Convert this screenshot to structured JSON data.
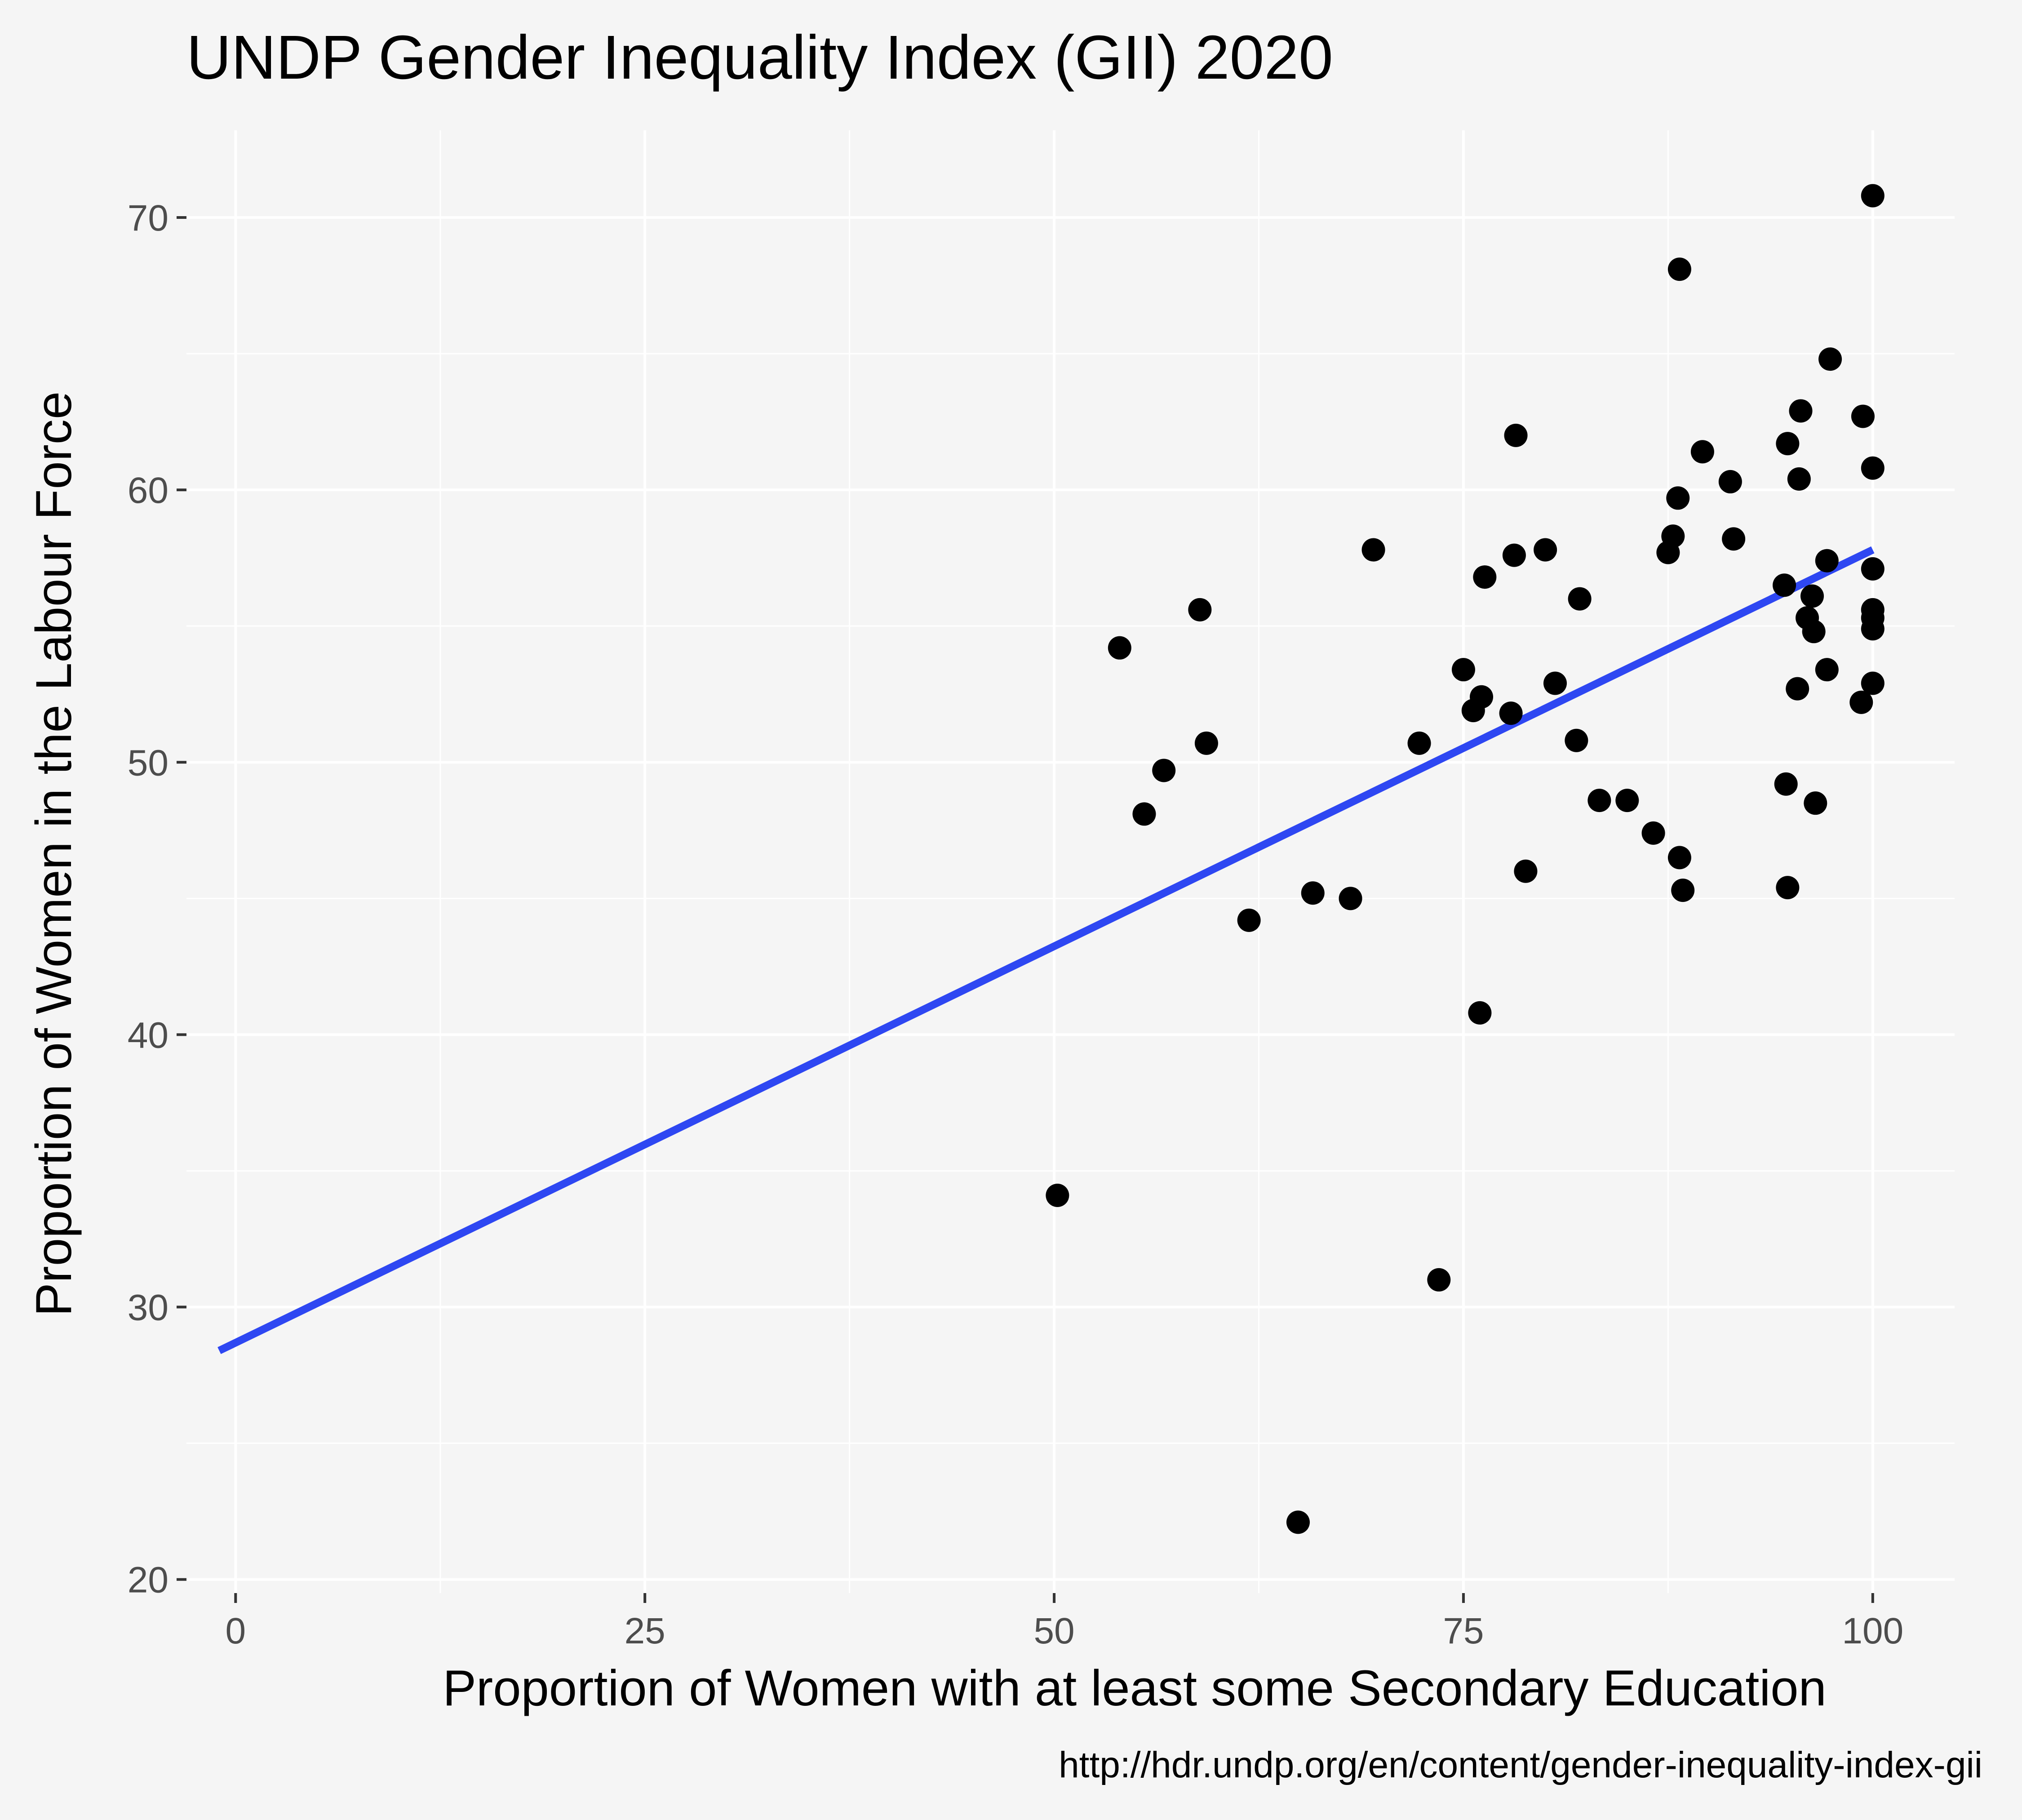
{
  "chart_data": {
    "type": "scatter",
    "title": "UNDP Gender Inequality Index (GII) 2020",
    "xlabel": "Proportion of Women with at least some Secondary Education",
    "ylabel": "Proportion of Women in the Labour Force",
    "caption": "http://hdr.undp.org/en/content/gender-inequality-index-gii",
    "xlim": [
      -3,
      105
    ],
    "ylim": [
      19.5,
      73.2
    ],
    "x_ticks": [
      0,
      25,
      50,
      75,
      100
    ],
    "y_ticks": [
      20,
      30,
      40,
      50,
      60,
      70
    ],
    "grid": true,
    "background_color": "#f5f5f5",
    "grid_color": "#ffffff",
    "point_color": "#000000",
    "line_color": "#2e47f2",
    "trend_line": {
      "x": [
        -1,
        100
      ],
      "y": [
        28.4,
        57.8
      ]
    },
    "points": [
      {
        "x": 50.2,
        "y": 34.1
      },
      {
        "x": 54.0,
        "y": 54.2
      },
      {
        "x": 55.5,
        "y": 48.1
      },
      {
        "x": 56.7,
        "y": 49.7
      },
      {
        "x": 58.9,
        "y": 55.6
      },
      {
        "x": 59.3,
        "y": 50.7
      },
      {
        "x": 61.9,
        "y": 44.2
      },
      {
        "x": 64.9,
        "y": 22.1
      },
      {
        "x": 65.8,
        "y": 45.2
      },
      {
        "x": 68.1,
        "y": 45.0
      },
      {
        "x": 69.5,
        "y": 57.8
      },
      {
        "x": 72.3,
        "y": 50.7
      },
      {
        "x": 73.5,
        "y": 31.0
      },
      {
        "x": 75.0,
        "y": 53.4
      },
      {
        "x": 75.6,
        "y": 51.9
      },
      {
        "x": 76.1,
        "y": 52.4
      },
      {
        "x": 76.0,
        "y": 40.8
      },
      {
        "x": 76.3,
        "y": 56.8
      },
      {
        "x": 77.9,
        "y": 51.8
      },
      {
        "x": 78.1,
        "y": 57.6
      },
      {
        "x": 78.2,
        "y": 62.0
      },
      {
        "x": 78.8,
        "y": 46.0
      },
      {
        "x": 80.0,
        "y": 57.8
      },
      {
        "x": 80.6,
        "y": 52.9
      },
      {
        "x": 81.9,
        "y": 50.8
      },
      {
        "x": 82.1,
        "y": 56.0
      },
      {
        "x": 83.3,
        "y": 48.6
      },
      {
        "x": 85.0,
        "y": 48.6
      },
      {
        "x": 86.6,
        "y": 47.4
      },
      {
        "x": 87.5,
        "y": 57.7
      },
      {
        "x": 87.8,
        "y": 58.3
      },
      {
        "x": 88.1,
        "y": 59.7
      },
      {
        "x": 88.2,
        "y": 68.1
      },
      {
        "x": 88.2,
        "y": 46.5
      },
      {
        "x": 88.4,
        "y": 45.3
      },
      {
        "x": 89.6,
        "y": 61.4
      },
      {
        "x": 91.3,
        "y": 60.3
      },
      {
        "x": 91.5,
        "y": 58.2
      },
      {
        "x": 94.6,
        "y": 56.5
      },
      {
        "x": 94.8,
        "y": 61.7
      },
      {
        "x": 94.7,
        "y": 49.2
      },
      {
        "x": 94.8,
        "y": 45.4
      },
      {
        "x": 95.4,
        "y": 52.7
      },
      {
        "x": 95.5,
        "y": 60.4
      },
      {
        "x": 95.6,
        "y": 62.9
      },
      {
        "x": 96.0,
        "y": 55.3
      },
      {
        "x": 96.3,
        "y": 56.1
      },
      {
        "x": 96.4,
        "y": 54.8
      },
      {
        "x": 96.5,
        "y": 48.5
      },
      {
        "x": 97.2,
        "y": 57.4
      },
      {
        "x": 97.2,
        "y": 53.4
      },
      {
        "x": 97.4,
        "y": 64.8
      },
      {
        "x": 99.3,
        "y": 52.2
      },
      {
        "x": 99.4,
        "y": 62.7
      },
      {
        "x": 100.0,
        "y": 70.8
      },
      {
        "x": 100.0,
        "y": 60.8
      },
      {
        "x": 100.0,
        "y": 57.1
      },
      {
        "x": 100.0,
        "y": 55.6
      },
      {
        "x": 100.0,
        "y": 55.3
      },
      {
        "x": 100.0,
        "y": 54.9
      },
      {
        "x": 100.0,
        "y": 52.9
      }
    ]
  }
}
